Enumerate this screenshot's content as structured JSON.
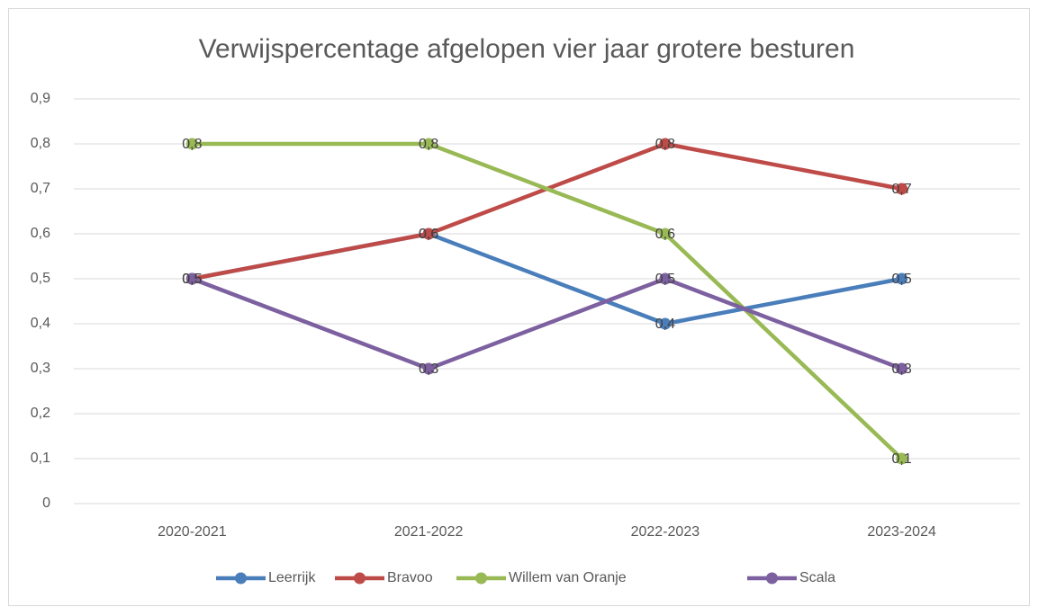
{
  "chart_data": {
    "type": "line",
    "title": "Verwijspercentage afgelopen vier jaar grotere besturen",
    "categories": [
      "2020-2021",
      "2021-2022",
      "2022-2023",
      "2023-2024"
    ],
    "series": [
      {
        "name": "Leerrijk",
        "color": "#4a7ebb",
        "values": [
          0.5,
          0.6,
          0.4,
          0.5
        ],
        "value_labels": [
          "0,5",
          "0,6",
          "0,4",
          "0,5"
        ]
      },
      {
        "name": "Bravoo",
        "color": "#be4b48",
        "values": [
          0.5,
          0.6,
          0.8,
          0.7
        ],
        "value_labels": [
          "0,5",
          "0,6",
          "0,8",
          "0,7"
        ]
      },
      {
        "name": "Willem van Oranje",
        "color": "#98b954",
        "values": [
          0.8,
          0.8,
          0.6,
          0.1
        ],
        "value_labels": [
          "0,8",
          "0,8",
          "0,6",
          "0,1"
        ]
      },
      {
        "name": "Scala",
        "color": "#7d60a0",
        "values": [
          0.5,
          0.3,
          0.5,
          0.3
        ],
        "value_labels": [
          "0,5",
          "0,3",
          "0,5",
          "0,3"
        ]
      }
    ],
    "ylim": [
      0,
      0.9
    ],
    "yticks": [
      0,
      {
        "value": 0.1,
        "label": "0,1"
      },
      {
        "value": 0.2,
        "label": "0,2"
      },
      {
        "value": 0.3,
        "label": "0,3"
      },
      {
        "value": 0.4,
        "label": "0,4"
      },
      {
        "value": 0.5,
        "label": "0,5"
      },
      {
        "value": 0.6,
        "label": "0,6"
      },
      {
        "value": 0.7,
        "label": "0,7"
      },
      {
        "value": 0.8,
        "label": "0,8"
      },
      {
        "value": 0.9,
        "label": "0,9"
      }
    ],
    "grid": true,
    "legend": "bottom"
  }
}
